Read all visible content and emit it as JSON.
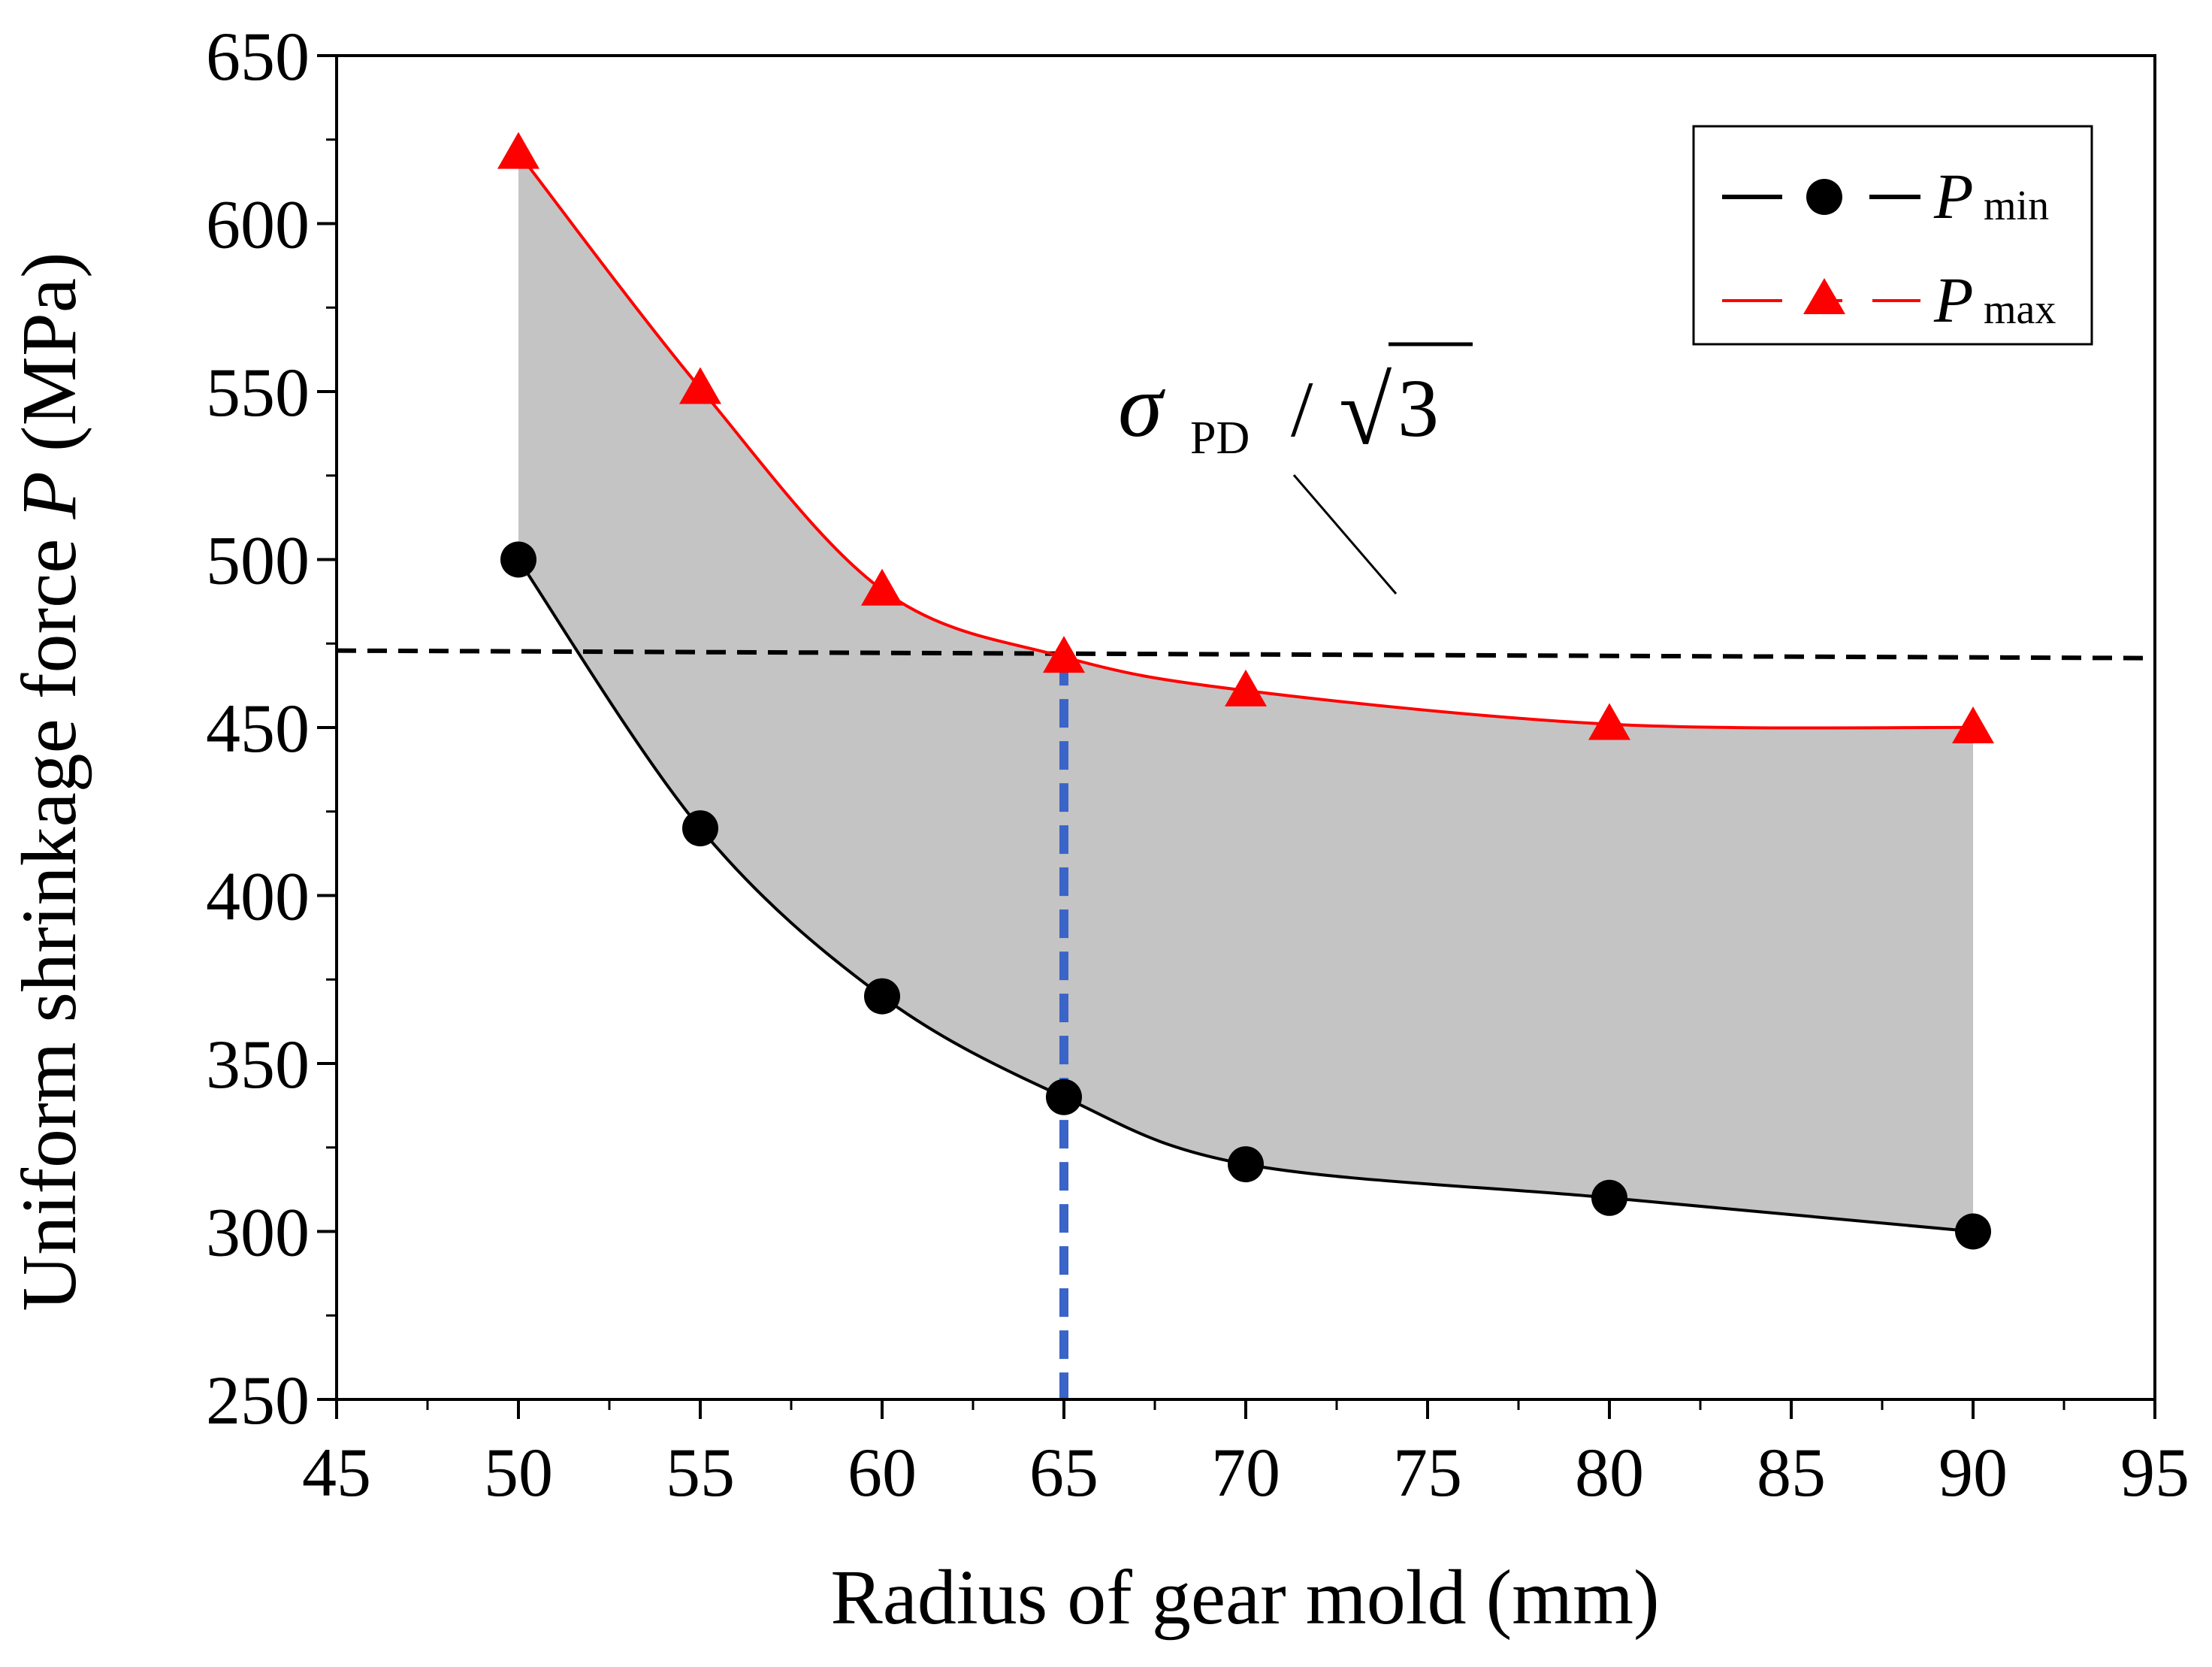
{
  "chart_data": {
    "type": "line",
    "title": "",
    "xlabel": "Radius of gear mold (mm)",
    "ylabel": {
      "prefix": "Uniform shrinkage force ",
      "variable": "P",
      "suffix": " (MPa)"
    },
    "xlim": [
      45,
      95
    ],
    "ylim": [
      250,
      650
    ],
    "xticks": [
      45,
      50,
      55,
      60,
      65,
      70,
      75,
      80,
      85,
      90,
      95
    ],
    "yticks": [
      250,
      300,
      350,
      400,
      450,
      500,
      550,
      600,
      650
    ],
    "x": [
      50,
      55,
      60,
      65,
      70,
      80,
      90
    ],
    "series": [
      {
        "name": "Pmin",
        "label_main": "P",
        "label_sub": "min",
        "marker": "circle",
        "color": "#000000",
        "values": [
          500,
          420,
          370,
          340,
          320,
          310,
          300
        ]
      },
      {
        "name": "Pmax",
        "label_main": "P",
        "label_sub": "max",
        "marker": "triangle",
        "color": "#ff0000",
        "values": [
          621,
          551,
          491,
          471,
          461,
          451,
          450
        ]
      }
    ],
    "fill_between": {
      "color": "#c4c4c4",
      "from": "Pmin",
      "to": "Pmax"
    },
    "reference_line": {
      "y": 472,
      "style": "dashed",
      "color": "#000000"
    },
    "vertical_marker": {
      "x": 65,
      "style": "dashed",
      "color": "#3a64c8"
    },
    "annotation": {
      "sigma": "σ",
      "subscript": "PD",
      "slash": "/",
      "sqrt_symbol": "√",
      "radicand": "3"
    },
    "legend": {
      "position": "top-right"
    }
  }
}
